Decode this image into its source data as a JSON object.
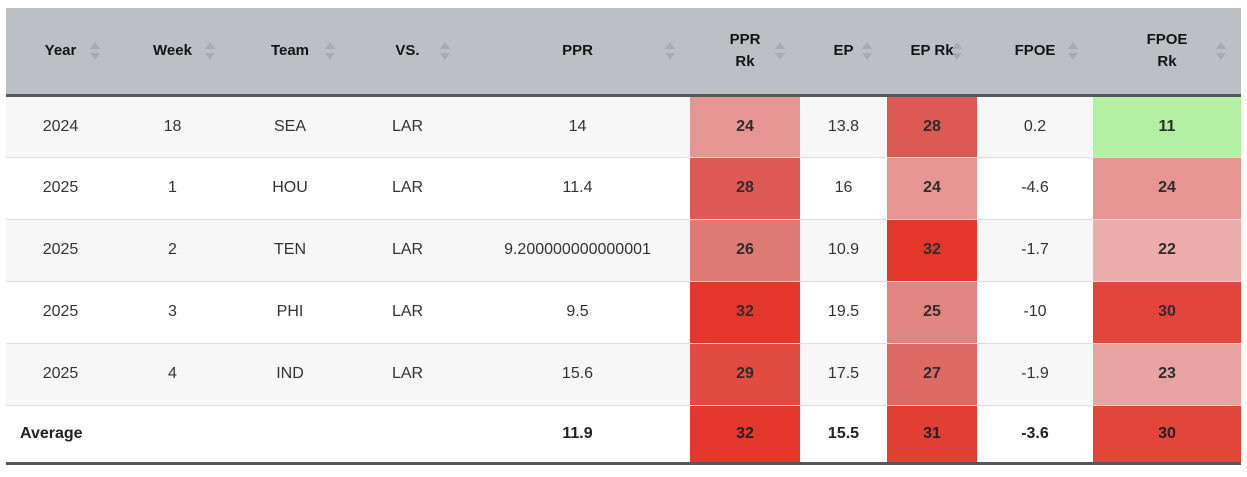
{
  "table": {
    "columns": [
      {
        "id": "year",
        "label": "Year"
      },
      {
        "id": "week",
        "label": "Week"
      },
      {
        "id": "team",
        "label": "Team"
      },
      {
        "id": "vs",
        "label": "VS."
      },
      {
        "id": "ppr",
        "label": "PPR"
      },
      {
        "id": "ppr_rk",
        "label": "PPR Rk"
      },
      {
        "id": "ep",
        "label": "EP"
      },
      {
        "id": "ep_rk",
        "label": "EP Rk"
      },
      {
        "id": "fpoe",
        "label": "FPOE"
      },
      {
        "id": "fpoe_rk",
        "label": "FPOE Rk"
      }
    ],
    "rows": [
      {
        "year": "2024",
        "week": "18",
        "team": "SEA",
        "vs": "LAR",
        "ppr": "14",
        "ppr_rk": "24",
        "ep": "13.8",
        "ep_rk": "28",
        "fpoe": "0.2",
        "fpoe_rk": "11"
      },
      {
        "year": "2025",
        "week": "1",
        "team": "HOU",
        "vs": "LAR",
        "ppr": "11.4",
        "ppr_rk": "28",
        "ep": "16",
        "ep_rk": "24",
        "fpoe": "-4.6",
        "fpoe_rk": "24"
      },
      {
        "year": "2025",
        "week": "2",
        "team": "TEN",
        "vs": "LAR",
        "ppr": "9.200000000000001",
        "ppr_rk": "26",
        "ep": "10.9",
        "ep_rk": "32",
        "fpoe": "-1.7",
        "fpoe_rk": "22"
      },
      {
        "year": "2025",
        "week": "3",
        "team": "PHI",
        "vs": "LAR",
        "ppr": "9.5",
        "ppr_rk": "32",
        "ep": "19.5",
        "ep_rk": "25",
        "fpoe": "-10",
        "fpoe_rk": "30"
      },
      {
        "year": "2025",
        "week": "4",
        "team": "IND",
        "vs": "LAR",
        "ppr": "15.6",
        "ppr_rk": "29",
        "ep": "17.5",
        "ep_rk": "27",
        "fpoe": "-1.9",
        "fpoe_rk": "23"
      }
    ],
    "average": {
      "label": "Average",
      "ppr": "11.9",
      "ppr_rk": "32",
      "ep": "15.5",
      "ep_rk": "31",
      "fpoe": "-3.6",
      "fpoe_rk": "30"
    },
    "rank_colors": {
      "11": "#b3f0a3",
      "22": "#ecaeac",
      "23": "#e8a3a1",
      "24": "#e79592",
      "25": "#e18580",
      "26": "#de7a74",
      "27": "#dd6b64",
      "28": "#dd5953",
      "29": "#e24b40",
      "30": "#e2453a",
      "31": "#e23f33",
      "32": "#e2372a"
    },
    "style_colors": {
      "header_bg": "#bcc0c4",
      "dark_border": "#54575b",
      "row_border": "#dedede",
      "zebra_row_bg": "#f7f7f7",
      "sort_arrow": "#a7abaf"
    }
  }
}
